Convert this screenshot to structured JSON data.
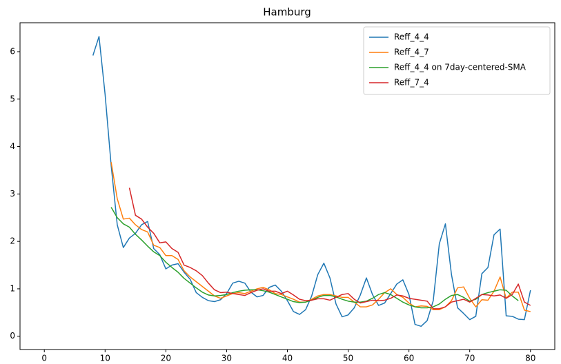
{
  "chart_data": {
    "type": "line",
    "title": "Hamburg",
    "x": [
      8,
      9,
      10,
      11,
      12,
      13,
      14,
      15,
      16,
      17,
      18,
      19,
      20,
      21,
      22,
      23,
      24,
      25,
      26,
      27,
      28,
      29,
      30,
      31,
      32,
      33,
      34,
      35,
      36,
      37,
      38,
      39,
      40,
      41,
      42,
      43,
      44,
      45,
      46,
      47,
      48,
      49,
      50,
      51,
      52,
      53,
      54,
      55,
      56,
      57,
      58,
      59,
      60,
      61,
      62,
      63,
      64,
      65,
      66,
      67,
      68,
      69,
      70,
      71,
      72,
      73,
      74,
      75,
      76,
      77,
      78,
      79,
      80
    ],
    "series": [
      {
        "name": "Reff_4_4",
        "color": "#1f77b4",
        "values": [
          5.92,
          6.32,
          5.1,
          3.6,
          2.35,
          1.87,
          2.07,
          2.17,
          2.35,
          2.42,
          1.85,
          1.72,
          1.42,
          1.5,
          1.53,
          1.35,
          1.2,
          0.92,
          0.82,
          0.75,
          0.73,
          0.77,
          0.9,
          1.12,
          1.16,
          1.12,
          0.93,
          0.83,
          0.86,
          1.03,
          1.08,
          0.95,
          0.75,
          0.52,
          0.46,
          0.56,
          0.85,
          1.3,
          1.54,
          1.23,
          0.68,
          0.41,
          0.45,
          0.6,
          0.87,
          1.23,
          0.88,
          0.65,
          0.7,
          0.9,
          1.1,
          1.19,
          0.88,
          0.25,
          0.21,
          0.33,
          0.75,
          1.95,
          2.37,
          1.3,
          0.6,
          0.48,
          0.35,
          0.42,
          1.32,
          1.45,
          2.14,
          2.26,
          0.43,
          0.42,
          0.36,
          0.35,
          0.97
        ]
      },
      {
        "name": "Reff_4_7",
        "color": "#ff7f0e",
        "values": [
          null,
          null,
          null,
          3.67,
          2.9,
          2.47,
          2.49,
          2.35,
          2.25,
          2.2,
          1.92,
          1.87,
          1.7,
          1.7,
          1.62,
          1.38,
          1.25,
          1.15,
          1.05,
          0.95,
          0.85,
          0.8,
          0.85,
          0.9,
          0.92,
          0.9,
          0.95,
          1.0,
          1.03,
          0.98,
          0.9,
          0.88,
          0.83,
          0.78,
          0.72,
          0.72,
          0.78,
          0.85,
          0.88,
          0.88,
          0.85,
          0.82,
          0.82,
          0.72,
          0.62,
          0.62,
          0.66,
          0.78,
          0.92,
          1.0,
          0.88,
          0.82,
          0.7,
          0.62,
          0.64,
          0.63,
          0.56,
          0.56,
          0.62,
          0.75,
          1.02,
          1.04,
          0.8,
          0.62,
          0.77,
          0.76,
          0.95,
          1.25,
          0.8,
          0.93,
          0.93,
          0.55,
          0.52
        ]
      },
      {
        "name": "Reff_4_4 on 7day-centered-SMA",
        "color": "#2ca02c",
        "values": [
          null,
          null,
          null,
          2.72,
          2.5,
          2.37,
          2.3,
          2.15,
          2.03,
          1.9,
          1.78,
          1.7,
          1.56,
          1.45,
          1.35,
          1.22,
          1.12,
          1.02,
          0.93,
          0.87,
          0.85,
          0.86,
          0.88,
          0.92,
          0.95,
          0.97,
          0.98,
          0.98,
          0.96,
          0.93,
          0.88,
          0.83,
          0.78,
          0.73,
          0.71,
          0.72,
          0.76,
          0.82,
          0.86,
          0.86,
          0.83,
          0.78,
          0.74,
          0.72,
          0.72,
          0.74,
          0.8,
          0.88,
          0.92,
          0.88,
          0.8,
          0.72,
          0.66,
          0.62,
          0.6,
          0.6,
          0.62,
          0.68,
          0.78,
          0.86,
          0.88,
          0.82,
          0.74,
          0.78,
          0.88,
          0.92,
          0.95,
          0.98,
          0.97,
          0.85,
          0.75,
          null,
          null
        ]
      },
      {
        "name": "Reff_7_4",
        "color": "#d62728",
        "values": [
          null,
          null,
          null,
          null,
          null,
          null,
          3.13,
          2.55,
          2.47,
          2.3,
          2.17,
          1.97,
          1.99,
          1.85,
          1.77,
          1.5,
          1.45,
          1.38,
          1.28,
          1.12,
          0.98,
          0.92,
          0.93,
          0.9,
          0.88,
          0.86,
          0.92,
          0.97,
          1.0,
          0.95,
          0.95,
          0.9,
          0.95,
          0.87,
          0.78,
          0.75,
          0.76,
          0.79,
          0.79,
          0.76,
          0.82,
          0.88,
          0.9,
          0.78,
          0.7,
          0.73,
          0.76,
          0.75,
          0.76,
          0.8,
          0.87,
          0.85,
          0.8,
          0.78,
          0.76,
          0.74,
          0.58,
          0.58,
          0.62,
          0.72,
          0.75,
          0.78,
          0.72,
          0.8,
          0.88,
          0.87,
          0.85,
          0.87,
          0.8,
          0.88,
          1.1,
          0.72,
          0.65
        ]
      }
    ],
    "xlim": [
      -4,
      84
    ],
    "ylim": [
      -0.28,
      6.61
    ],
    "xticks": [
      0,
      10,
      20,
      30,
      40,
      50,
      60,
      70,
      80
    ],
    "yticks": [
      0,
      1,
      2,
      3,
      4,
      5,
      6
    ],
    "legend": "upper right",
    "grid": false
  }
}
